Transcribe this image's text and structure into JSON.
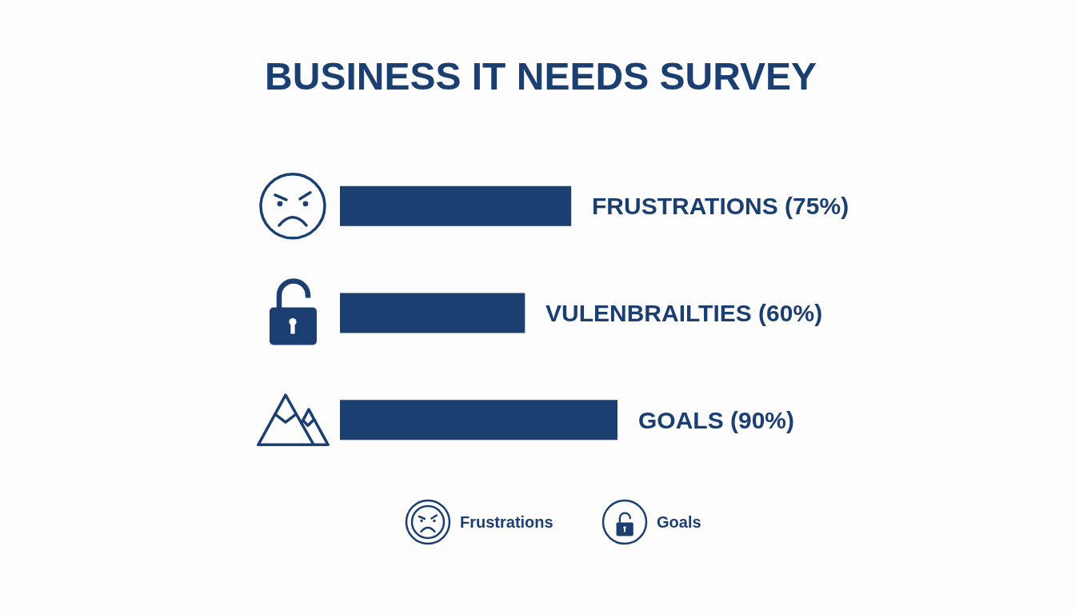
{
  "chart_data": {
    "type": "bar",
    "orientation": "horizontal",
    "title": "BUSINESS IT NEEDS SURVEY",
    "categories": [
      null,
      null,
      null
    ],
    "values": [
      75,
      60,
      90
    ],
    "value_labels": [
      "FRUSTRATIONS (75%)",
      "VULENBRAILTIES (60%)",
      "GOALS (90%)"
    ],
    "color": "#1b3f70",
    "annotations": [
      "Frustrations",
      "Goals"
    ]
  }
}
